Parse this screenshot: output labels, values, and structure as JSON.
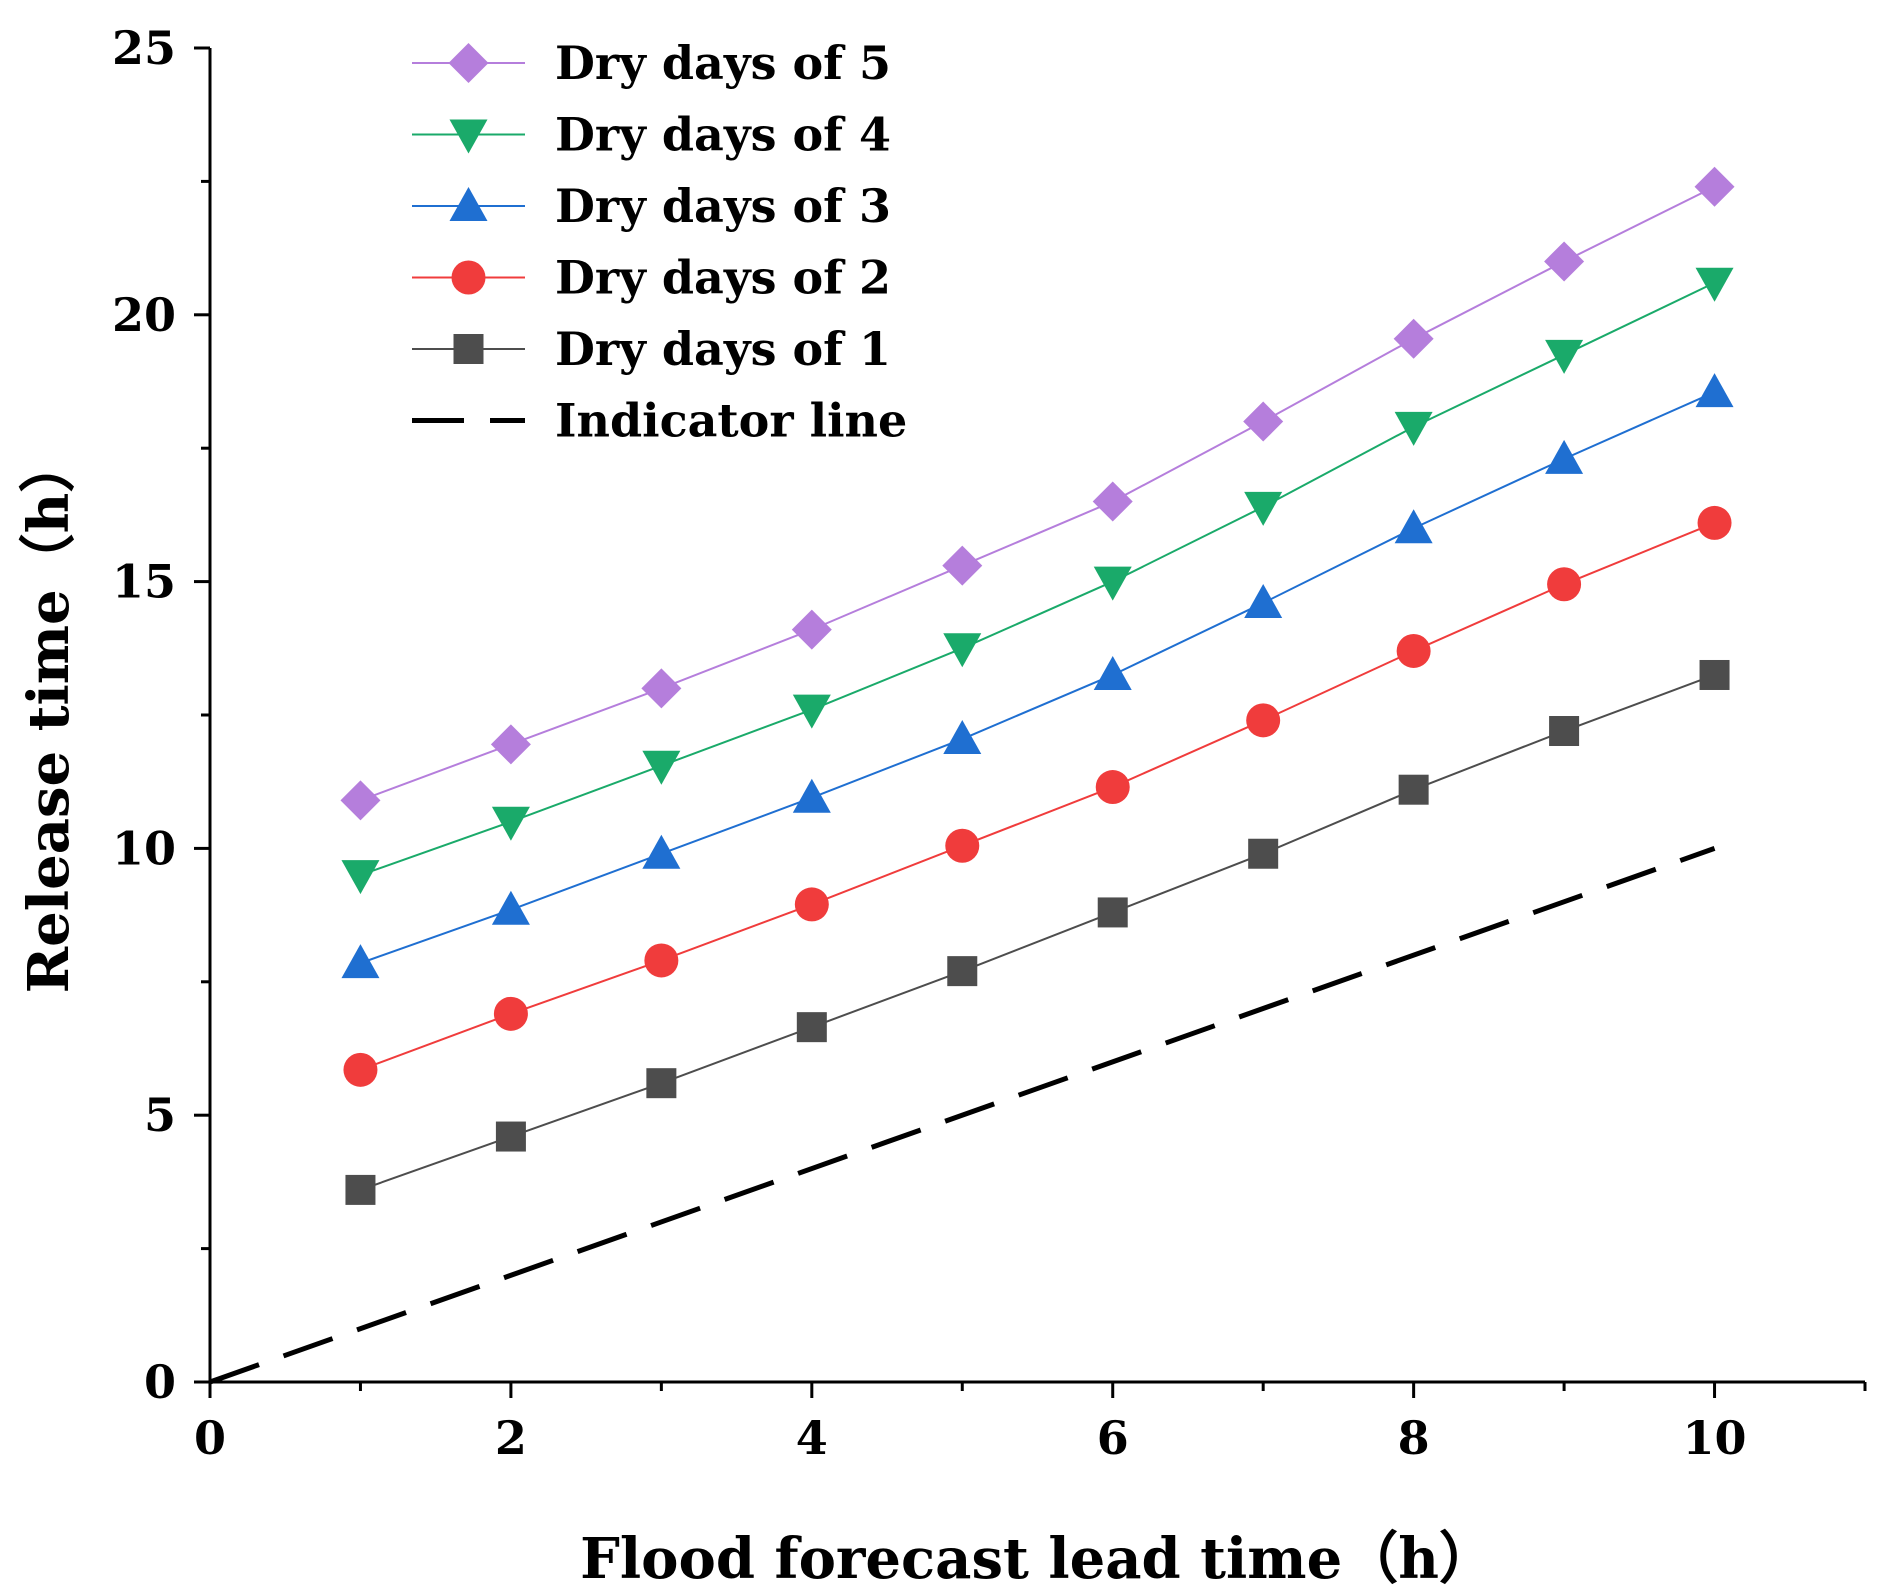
{
  "chart_data": {
    "type": "line",
    "xlabel": "Flood forecast lead time（h）",
    "ylabel": "Release time（h）",
    "xlim": [
      0,
      11
    ],
    "ylim": [
      0,
      25
    ],
    "x_ticks": [
      0,
      2,
      4,
      6,
      8,
      10
    ],
    "y_ticks": [
      0,
      5,
      10,
      15,
      20,
      25
    ],
    "grid": false,
    "legend_position": "top-left",
    "series": [
      {
        "name": "Dry days of 5",
        "color": "#b57edc",
        "marker": "diamond",
        "x": [
          1,
          2,
          3,
          4,
          5,
          6,
          7,
          8,
          9,
          10
        ],
        "y": [
          10.9,
          11.95,
          13.0,
          14.1,
          15.3,
          16.5,
          18.0,
          19.55,
          21.0,
          22.4
        ]
      },
      {
        "name": "Dry days of 4",
        "color": "#1aaa6a",
        "marker": "triangle-down",
        "x": [
          1,
          2,
          3,
          4,
          5,
          6,
          7,
          8,
          9,
          10
        ],
        "y": [
          9.5,
          10.5,
          11.55,
          12.6,
          13.75,
          15.0,
          16.4,
          17.9,
          19.25,
          20.6
        ]
      },
      {
        "name": "Dry days of 3",
        "color": "#1f6fd1",
        "marker": "triangle-up",
        "x": [
          1,
          2,
          3,
          4,
          5,
          6,
          7,
          8,
          9,
          10
        ],
        "y": [
          7.85,
          8.85,
          9.9,
          10.95,
          12.05,
          13.25,
          14.6,
          16.0,
          17.3,
          18.55
        ]
      },
      {
        "name": "Dry days of 2",
        "color": "#f03c3c",
        "marker": "circle",
        "x": [
          1,
          2,
          3,
          4,
          5,
          6,
          7,
          8,
          9,
          10
        ],
        "y": [
          5.85,
          6.9,
          7.9,
          8.95,
          10.05,
          11.15,
          12.4,
          13.7,
          14.95,
          16.1
        ]
      },
      {
        "name": "Dry days of 1",
        "color": "#4d4d4d",
        "marker": "square",
        "x": [
          1,
          2,
          3,
          4,
          5,
          6,
          7,
          8,
          9,
          10
        ],
        "y": [
          3.6,
          4.6,
          5.6,
          6.65,
          7.7,
          8.8,
          9.9,
          11.1,
          12.2,
          13.25
        ]
      },
      {
        "name": "Indicator line",
        "color": "#000000",
        "marker": "none",
        "dashed": true,
        "x": [
          0,
          10
        ],
        "y": [
          0,
          10
        ]
      }
    ]
  }
}
